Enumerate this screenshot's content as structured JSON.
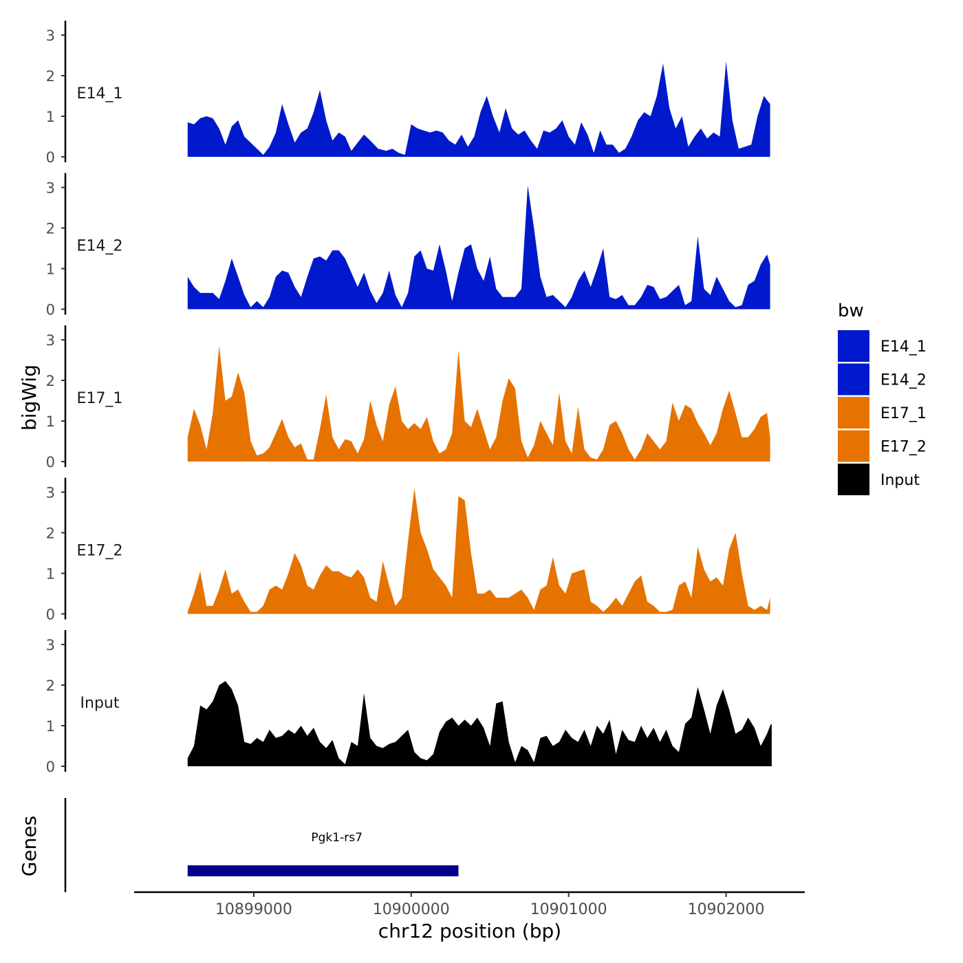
{
  "chart_data": {
    "type": "area",
    "title": "",
    "xlabel": "chr12 position (bp)",
    "ylabel": "bigWig",
    "genes_label": "Genes",
    "xlim": [
      10898240,
      10902500
    ],
    "ylim": [
      0,
      3.3
    ],
    "yticks": [
      0,
      1,
      2,
      3
    ],
    "xticks": [
      10899000,
      10900000,
      10901000,
      10902000
    ],
    "xtick_labels": [
      "10899000",
      "10900000",
      "10901000",
      "10902000"
    ],
    "legend": {
      "title": "bw",
      "position": "right",
      "entries": [
        {
          "label": "E14_1",
          "color": "#0019CC"
        },
        {
          "label": "E14_2",
          "color": "#0019CC"
        },
        {
          "label": "E17_1",
          "color": "#E67300"
        },
        {
          "label": "E17_2",
          "color": "#E67300"
        },
        {
          "label": "Input",
          "color": "#000000"
        }
      ]
    },
    "series": [
      {
        "name": "E14_1",
        "color": "#0019CC",
        "x": [
          10898580,
          10898620,
          10898660,
          10898700,
          10898740,
          10898780,
          10898820,
          10898860,
          10898900,
          10898940,
          10899060,
          10899100,
          10899140,
          10899180,
          10899220,
          10899260,
          10899300,
          10899340,
          10899380,
          10899420,
          10899460,
          10899500,
          10899540,
          10899580,
          10899620,
          10899660,
          10899700,
          10899740,
          10899790,
          10899840,
          10899880,
          10899920,
          10899960,
          10900000,
          10900040,
          10900080,
          10900120,
          10900160,
          10900200,
          10900240,
          10900280,
          10900320,
          10900360,
          10900400,
          10900440,
          10900480,
          10900520,
          10900560,
          10900600,
          10900640,
          10900680,
          10900720,
          10900760,
          10900800,
          10900840,
          10900880,
          10900920,
          10900960,
          10901000,
          10901040,
          10901080,
          10901120,
          10901160,
          10901200,
          10901240,
          10901280,
          10901320,
          10901360,
          10901400,
          10901440,
          10901480,
          10901520,
          10901560,
          10901600,
          10901640,
          10901680,
          10901720,
          10901760,
          10901800,
          10901840,
          10901880,
          10901920,
          10901960,
          10902000,
          10902040,
          10902080,
          10902120,
          10902160,
          10902200,
          10902240,
          10902280
        ],
        "y": [
          0.85,
          0.8,
          0.95,
          1.0,
          0.95,
          0.7,
          0.3,
          0.75,
          0.9,
          0.5,
          0.05,
          0.25,
          0.6,
          1.3,
          0.8,
          0.35,
          0.6,
          0.7,
          1.1,
          1.65,
          0.9,
          0.4,
          0.6,
          0.5,
          0.15,
          0.35,
          0.55,
          0.4,
          0.2,
          0.15,
          0.2,
          0.1,
          0.05,
          0.8,
          0.7,
          0.65,
          0.6,
          0.65,
          0.6,
          0.4,
          0.3,
          0.55,
          0.25,
          0.5,
          1.1,
          1.5,
          1.0,
          0.6,
          1.2,
          0.7,
          0.55,
          0.65,
          0.4,
          0.2,
          0.65,
          0.6,
          0.7,
          0.9,
          0.5,
          0.3,
          0.85,
          0.55,
          0.1,
          0.65,
          0.3,
          0.3,
          0.1,
          0.2,
          0.5,
          0.9,
          1.1,
          1.0,
          1.5,
          2.3,
          1.2,
          0.7,
          1.0,
          0.25,
          0.5,
          0.7,
          0.45,
          0.6,
          0.5,
          2.35,
          0.9,
          0.2,
          0.25,
          0.3,
          1.0,
          1.5,
          1.3
        ]
      },
      {
        "name": "E14_2",
        "color": "#0019CC",
        "x": [
          10898580,
          10898620,
          10898660,
          10898700,
          10898740,
          10898780,
          10898820,
          10898860,
          10898900,
          10898940,
          10898980,
          10899020,
          10899060,
          10899100,
          10899140,
          10899180,
          10899220,
          10899260,
          10899300,
          10899340,
          10899380,
          10899420,
          10899460,
          10899500,
          10899540,
          10899580,
          10899620,
          10899660,
          10899700,
          10899740,
          10899780,
          10899820,
          10899860,
          10899900,
          10899940,
          10899980,
          10900020,
          10900060,
          10900100,
          10900140,
          10900180,
          10900220,
          10900260,
          10900300,
          10900340,
          10900380,
          10900420,
          10900460,
          10900500,
          10900540,
          10900580,
          10900620,
          10900660,
          10900700,
          10900740,
          10900780,
          10900820,
          10900860,
          10900900,
          10900940,
          10900980,
          10901020,
          10901060,
          10901100,
          10901140,
          10901180,
          10901220,
          10901260,
          10901300,
          10901340,
          10901380,
          10901420,
          10901460,
          10901500,
          10901540,
          10901580,
          10901620,
          10901660,
          10901700,
          10901740,
          10901780,
          10901820,
          10901860,
          10901900,
          10901940,
          10901980,
          10902020,
          10902060,
          10902100,
          10902140,
          10902180,
          10902220,
          10902260,
          10902280
        ],
        "y": [
          0.8,
          0.55,
          0.4,
          0.4,
          0.4,
          0.25,
          0.7,
          1.25,
          0.8,
          0.35,
          0.05,
          0.2,
          0.05,
          0.3,
          0.8,
          0.95,
          0.9,
          0.55,
          0.3,
          0.8,
          1.25,
          1.3,
          1.2,
          1.45,
          1.45,
          1.25,
          0.9,
          0.55,
          0.9,
          0.45,
          0.15,
          0.4,
          0.95,
          0.35,
          0.05,
          0.4,
          1.3,
          1.45,
          1.0,
          0.95,
          1.6,
          0.95,
          0.2,
          0.9,
          1.5,
          1.6,
          1.0,
          0.7,
          1.3,
          0.5,
          0.3,
          0.3,
          0.3,
          0.5,
          3.05,
          2.0,
          0.8,
          0.3,
          0.35,
          0.2,
          0.05,
          0.3,
          0.7,
          0.95,
          0.55,
          1.0,
          1.5,
          0.3,
          0.25,
          0.35,
          0.1,
          0.1,
          0.3,
          0.6,
          0.55,
          0.25,
          0.3,
          0.45,
          0.6,
          0.1,
          0.2,
          1.8,
          0.5,
          0.35,
          0.8,
          0.5,
          0.2,
          0.05,
          0.1,
          0.6,
          0.7,
          1.1,
          1.35,
          1.1
        ]
      },
      {
        "name": "E17_1",
        "color": "#E67300",
        "x": [
          10898580,
          10898620,
          10898660,
          10898700,
          10898740,
          10898780,
          10898820,
          10898860,
          10898900,
          10898940,
          10898980,
          10899020,
          10899060,
          10899100,
          10899140,
          10899180,
          10899220,
          10899260,
          10899300,
          10899340,
          10899380,
          10899420,
          10899460,
          10899500,
          10899540,
          10899580,
          10899620,
          10899660,
          10899700,
          10899740,
          10899780,
          10899820,
          10899860,
          10899900,
          10899940,
          10899980,
          10900020,
          10900060,
          10900100,
          10900140,
          10900180,
          10900220,
          10900260,
          10900300,
          10900340,
          10900380,
          10900420,
          10900460,
          10900500,
          10900540,
          10900580,
          10900620,
          10900660,
          10900700,
          10900740,
          10900780,
          10900820,
          10900860,
          10900900,
          10900940,
          10900980,
          10901020,
          10901060,
          10901100,
          10901140,
          10901180,
          10901220,
          10901260,
          10901300,
          10901340,
          10901380,
          10901420,
          10901460,
          10901500,
          10901540,
          10901580,
          10901620,
          10901660,
          10901700,
          10901740,
          10901780,
          10901820,
          10901860,
          10901900,
          10901940,
          10901980,
          10902020,
          10902060,
          10902100,
          10902140,
          10902180,
          10902220,
          10902260,
          10902280
        ],
        "y": [
          0.6,
          1.3,
          0.9,
          0.3,
          1.2,
          2.85,
          1.5,
          1.6,
          2.2,
          1.7,
          0.5,
          0.15,
          0.2,
          0.35,
          0.7,
          1.05,
          0.6,
          0.35,
          0.45,
          0.05,
          0.05,
          0.8,
          1.65,
          0.6,
          0.3,
          0.55,
          0.5,
          0.2,
          0.55,
          1.5,
          0.9,
          0.5,
          1.4,
          1.85,
          1.0,
          0.8,
          0.95,
          0.8,
          1.1,
          0.5,
          0.2,
          0.3,
          0.7,
          2.75,
          1.0,
          0.85,
          1.3,
          0.8,
          0.3,
          0.6,
          1.5,
          2.05,
          1.8,
          0.5,
          0.1,
          0.4,
          1.0,
          0.7,
          0.4,
          1.7,
          0.5,
          0.2,
          1.35,
          0.3,
          0.1,
          0.05,
          0.3,
          0.9,
          1.0,
          0.7,
          0.3,
          0.05,
          0.3,
          0.7,
          0.5,
          0.3,
          0.5,
          1.45,
          1.0,
          1.4,
          1.3,
          0.95,
          0.7,
          0.4,
          0.7,
          1.3,
          1.75,
          1.2,
          0.6,
          0.6,
          0.8,
          1.1,
          1.2,
          0.6
        ]
      },
      {
        "name": "E17_2",
        "color": "#E67300",
        "x": [
          10898580,
          10898620,
          10898660,
          10898700,
          10898740,
          10898780,
          10898820,
          10898860,
          10898900,
          10898940,
          10898980,
          10899020,
          10899060,
          10899100,
          10899140,
          10899180,
          10899220,
          10899260,
          10899300,
          10899340,
          10899380,
          10899420,
          10899460,
          10899500,
          10899540,
          10899580,
          10899620,
          10899660,
          10899700,
          10899740,
          10899780,
          10899820,
          10899860,
          10899900,
          10899940,
          10899980,
          10900020,
          10900060,
          10900100,
          10900140,
          10900180,
          10900220,
          10900260,
          10900300,
          10900340,
          10900380,
          10900420,
          10900460,
          10900500,
          10900540,
          10900580,
          10900620,
          10900660,
          10900700,
          10900740,
          10900780,
          10900820,
          10900860,
          10900900,
          10900940,
          10900980,
          10901020,
          10901060,
          10901100,
          10901140,
          10901180,
          10901220,
          10901260,
          10901300,
          10901340,
          10901380,
          10901420,
          10901460,
          10901500,
          10901540,
          10901580,
          10901620,
          10901660,
          10901700,
          10901740,
          10901780,
          10901820,
          10901860,
          10901900,
          10901940,
          10901980,
          10902020,
          10902060,
          10902100,
          10902140,
          10902180,
          10902220,
          10902260,
          10902280
        ],
        "y": [
          0.05,
          0.5,
          1.05,
          0.2,
          0.2,
          0.6,
          1.1,
          0.5,
          0.6,
          0.3,
          0.05,
          0.05,
          0.2,
          0.6,
          0.7,
          0.6,
          1.0,
          1.5,
          1.2,
          0.7,
          0.6,
          0.95,
          1.2,
          1.05,
          1.05,
          0.95,
          0.9,
          1.1,
          0.9,
          0.4,
          0.3,
          1.3,
          0.7,
          0.2,
          0.4,
          1.8,
          3.1,
          2.0,
          1.6,
          1.1,
          0.9,
          0.7,
          0.4,
          2.9,
          2.8,
          1.5,
          0.5,
          0.5,
          0.6,
          0.4,
          0.4,
          0.4,
          0.5,
          0.6,
          0.4,
          0.1,
          0.6,
          0.7,
          1.4,
          0.7,
          0.5,
          1.0,
          1.05,
          1.1,
          0.3,
          0.2,
          0.05,
          0.2,
          0.4,
          0.2,
          0.5,
          0.8,
          0.95,
          0.3,
          0.2,
          0.05,
          0.05,
          0.1,
          0.7,
          0.8,
          0.4,
          1.65,
          1.1,
          0.8,
          0.9,
          0.7,
          1.6,
          2.0,
          1.0,
          0.2,
          0.1,
          0.2,
          0.1,
          0.4
        ]
      },
      {
        "name": "Input",
        "color": "#000000",
        "x": [
          10898580,
          10898620,
          10898660,
          10898700,
          10898740,
          10898780,
          10898820,
          10898860,
          10898900,
          10898940,
          10898980,
          10899020,
          10899060,
          10899100,
          10899140,
          10899180,
          10899220,
          10899260,
          10899300,
          10899340,
          10899380,
          10899420,
          10899460,
          10899500,
          10899540,
          10899580,
          10899620,
          10899660,
          10899700,
          10899740,
          10899780,
          10899820,
          10899860,
          10899900,
          10899940,
          10899980,
          10900020,
          10900060,
          10900100,
          10900140,
          10900180,
          10900220,
          10900260,
          10900300,
          10900340,
          10900380,
          10900420,
          10900460,
          10900500,
          10900540,
          10900580,
          10900620,
          10900660,
          10900700,
          10900740,
          10900780,
          10900820,
          10900860,
          10900900,
          10900940,
          10900980,
          10901020,
          10901060,
          10901100,
          10901140,
          10901180,
          10901220,
          10901260,
          10901300,
          10901340,
          10901380,
          10901420,
          10901460,
          10901500,
          10901540,
          10901580,
          10901620,
          10901660,
          10901700,
          10901740,
          10901780,
          10901820,
          10901860,
          10901900,
          10901940,
          10901980,
          10902020,
          10902060,
          10902100,
          10902140,
          10902180,
          10902220,
          10902260,
          10902280,
          10902290
        ],
        "y": [
          0.2,
          0.5,
          1.5,
          1.4,
          1.6,
          2.0,
          2.1,
          1.9,
          1.5,
          0.6,
          0.55,
          0.7,
          0.6,
          0.9,
          0.7,
          0.75,
          0.9,
          0.8,
          1.0,
          0.75,
          0.95,
          0.6,
          0.45,
          0.65,
          0.2,
          0.05,
          0.6,
          0.5,
          1.8,
          0.7,
          0.5,
          0.45,
          0.55,
          0.6,
          0.75,
          0.9,
          0.35,
          0.2,
          0.15,
          0.3,
          0.85,
          1.1,
          1.2,
          1.0,
          1.15,
          1.0,
          1.2,
          0.95,
          0.5,
          1.55,
          1.6,
          0.6,
          0.1,
          0.5,
          0.4,
          0.1,
          0.7,
          0.75,
          0.5,
          0.6,
          0.9,
          0.7,
          0.6,
          0.9,
          0.5,
          1.0,
          0.8,
          1.15,
          0.3,
          0.9,
          0.65,
          0.6,
          1.0,
          0.7,
          0.95,
          0.6,
          0.9,
          0.5,
          0.35,
          1.05,
          1.2,
          1.95,
          1.4,
          0.8,
          1.5,
          1.9,
          1.4,
          0.8,
          0.9,
          1.2,
          0.95,
          0.5,
          0.8,
          1.0,
          1.05
        ]
      }
    ],
    "genes": [
      {
        "name": "Pgk1-rs7",
        "start": 10898580,
        "end": 10900300,
        "color": "#00008B"
      }
    ]
  }
}
